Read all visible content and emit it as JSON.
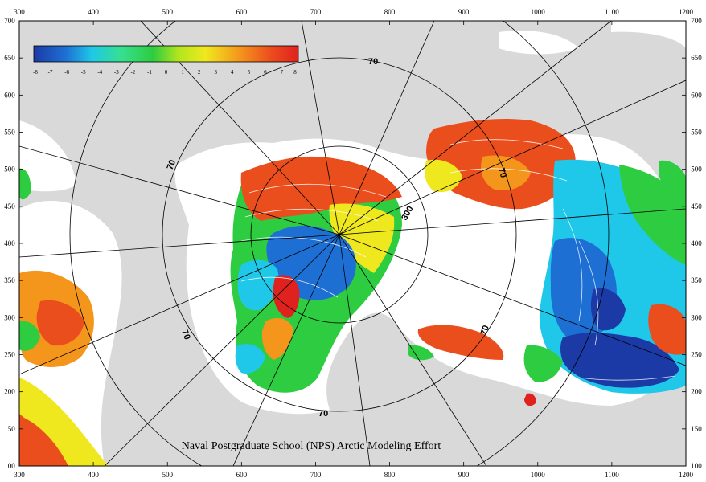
{
  "colorbar": {
    "ticks": [
      "-8",
      "-7",
      "-6",
      "-5",
      "-4",
      "-3",
      "-2",
      "-1",
      "0",
      "1",
      "2",
      "3",
      "4",
      "5",
      "6",
      "7",
      "8"
    ],
    "colors": [
      "#1b3aa6",
      "#1e6fd4",
      "#1fa9e6",
      "#2fd0d8",
      "#36e08f",
      "#2ecc40",
      "#8fdc20",
      "#e9ef1e",
      "#f6b81c",
      "#f2821b",
      "#ea4e1d",
      "#e0221e"
    ]
  },
  "axes": {
    "x_ticks": [
      "300",
      "400",
      "500",
      "600",
      "700",
      "800",
      "900",
      "1000",
      "1100",
      "1200"
    ],
    "y_ticks": [
      "700",
      "650",
      "600",
      "550",
      "500",
      "450",
      "400",
      "350",
      "300",
      "250",
      "200",
      "150",
      "100"
    ]
  },
  "latitude_labels": [
    "70",
    "70",
    "70",
    "70",
    "70",
    "70"
  ],
  "depth_label": "300",
  "credit": "Naval Postgraduate School (NPS) Arctic Modeling Effort",
  "colors": {
    "land": "#d9d9d9",
    "ocean_mask": "#ffffff",
    "grid_line": "#000000",
    "contour": "#ffffff"
  }
}
